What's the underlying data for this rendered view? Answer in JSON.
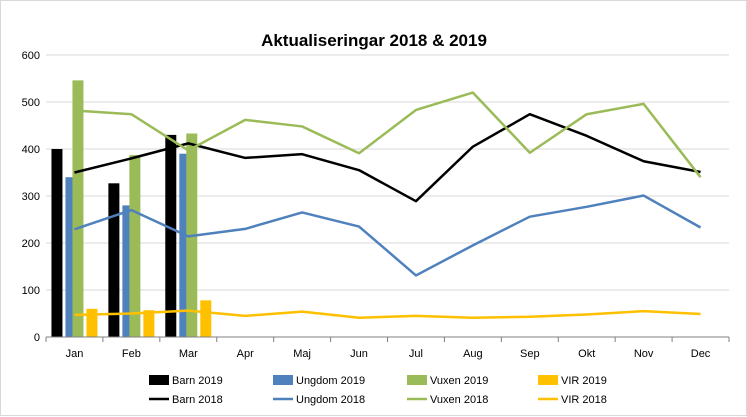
{
  "chart_data": {
    "type": "bar",
    "title": "Aktualiseringar 2018 & 2019",
    "categories": [
      "Jan",
      "Feb",
      "Mar",
      "Apr",
      "Maj",
      "Jun",
      "Jul",
      "Aug",
      "Sep",
      "Okt",
      "Nov",
      "Dec"
    ],
    "ylim": [
      0,
      600
    ],
    "yticks": [
      "0",
      "100",
      "200",
      "300",
      "400",
      "500",
      "600"
    ],
    "grid": true,
    "legend_position": "bottom",
    "bar_series": [
      {
        "name": "Barn 2019",
        "color": "#000000",
        "values": [
          400,
          327,
          430
        ]
      },
      {
        "name": "Ungdom 2019",
        "color": "#4f81bd",
        "values": [
          340,
          280,
          390
        ]
      },
      {
        "name": "Vuxen 2019",
        "color": "#9bbb59",
        "values": [
          546,
          387,
          433
        ]
      },
      {
        "name": "VIR 2019",
        "color": "#ffc000",
        "values": [
          60,
          57,
          78
        ]
      }
    ],
    "line_series": [
      {
        "name": "Barn 2018",
        "color": "#000000",
        "values": [
          350,
          380,
          412,
          381,
          389,
          355,
          289,
          405,
          474,
          428,
          374,
          351
        ]
      },
      {
        "name": "Ungdom 2018",
        "color": "#4f81bd",
        "values": [
          229,
          270,
          214,
          230,
          265,
          235,
          131,
          195,
          256,
          277,
          301,
          233
        ]
      },
      {
        "name": "Vuxen 2018",
        "color": "#9bbb59",
        "values": [
          482,
          474,
          397,
          462,
          448,
          391,
          483,
          520,
          392,
          474,
          496,
          340
        ]
      },
      {
        "name": "VIR 2018",
        "color": "#ffc000",
        "values": [
          47,
          50,
          56,
          45,
          54,
          41,
          45,
          41,
          43,
          48,
          55,
          49
        ]
      }
    ]
  }
}
